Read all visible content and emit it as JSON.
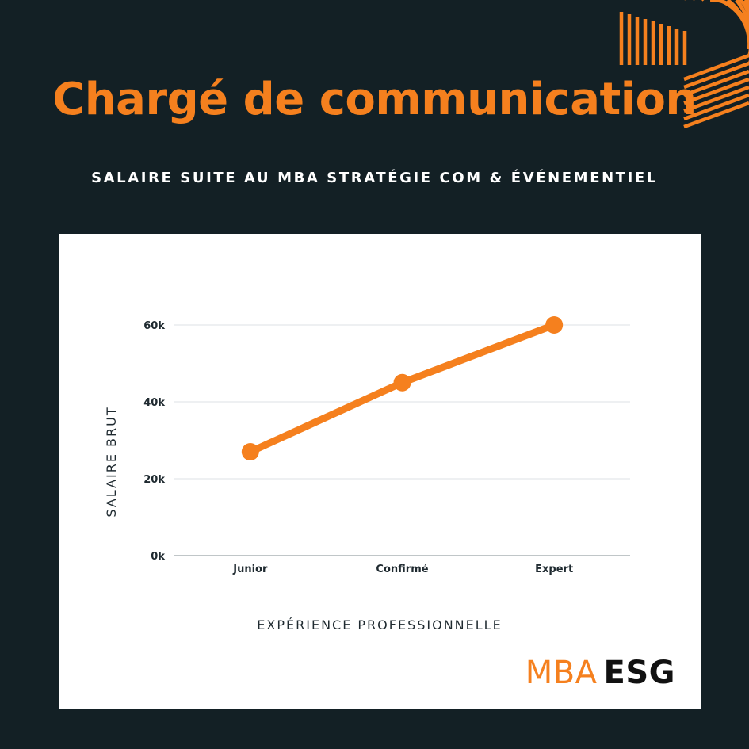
{
  "header": {
    "title": "Chargé de communication",
    "subtitle": "SALAIRE SUITE AU MBA STRATÉGIE COM & ÉVÉNEMENTIEL"
  },
  "logo": {
    "part1": "MBA",
    "part2": "ESG"
  },
  "colors": {
    "background": "#132025",
    "accent": "#F5801E",
    "card": "#FFFFFF"
  },
  "chart_data": {
    "type": "line",
    "title": "",
    "xlabel": "EXPÉRIENCE PROFESSIONNELLE",
    "ylabel": "SALAIRE BRUT",
    "categories": [
      "Junior",
      "Confirmé",
      "Expert"
    ],
    "series": [
      {
        "values": [
          27000,
          45000,
          60000
        ],
        "color": "#F5801E"
      }
    ],
    "ylim": [
      0,
      60000
    ],
    "yticks": [
      0,
      20000,
      40000,
      60000
    ],
    "ytick_labels": [
      "0k",
      "20k",
      "40k",
      "60k"
    ],
    "grid": true,
    "legend": "none"
  }
}
